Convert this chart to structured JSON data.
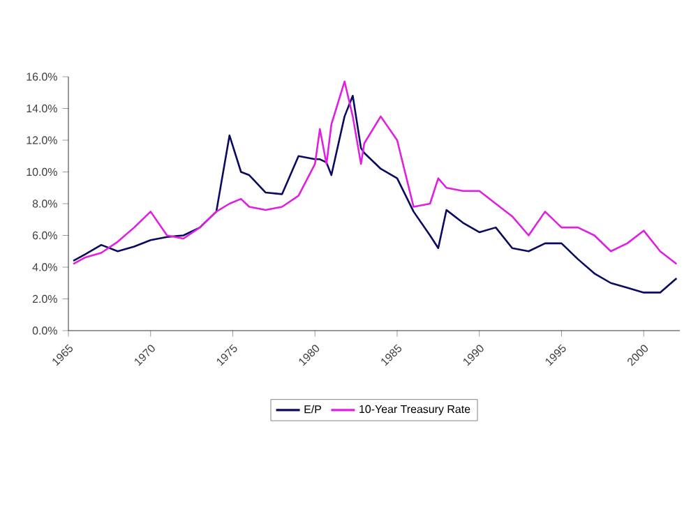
{
  "chart_data": {
    "type": "line",
    "x": [
      1965.3,
      1966,
      1967,
      1968,
      1969,
      1970,
      1971,
      1972,
      1973,
      1974,
      1974.8,
      1975.5,
      1976,
      1977,
      1978,
      1979,
      1980,
      1980.3,
      1980.7,
      1981,
      1981.8,
      1982.3,
      1982.8,
      1983,
      1984,
      1985,
      1986,
      1987,
      1987.5,
      1988,
      1989,
      1990,
      1991,
      1992,
      1993,
      1994,
      1995,
      1996,
      1997,
      1998,
      1999,
      2000,
      2001,
      2002
    ],
    "series": [
      {
        "name": "E/P",
        "color": "#0a0a60",
        "values": [
          4.4,
          4.8,
          5.4,
          5.0,
          5.3,
          5.7,
          5.9,
          6.0,
          6.5,
          7.5,
          12.3,
          10.0,
          9.8,
          8.7,
          8.6,
          11.0,
          10.8,
          10.8,
          10.6,
          9.8,
          13.5,
          14.8,
          11.5,
          11.2,
          10.2,
          9.6,
          7.5,
          6.0,
          5.2,
          7.6,
          6.8,
          6.2,
          6.5,
          5.2,
          5.0,
          5.5,
          5.5,
          4.5,
          3.6,
          3.0,
          2.7,
          2.4,
          2.4,
          3.3
        ]
      },
      {
        "name": "10-Year Treasury Rate",
        "color": "#e020e0",
        "values": [
          4.2,
          4.6,
          4.9,
          5.6,
          6.5,
          7.5,
          6.0,
          5.8,
          6.5,
          7.5,
          8.0,
          8.3,
          7.8,
          7.6,
          7.8,
          8.5,
          10.5,
          12.7,
          10.5,
          13.0,
          15.7,
          13.5,
          10.5,
          11.8,
          13.5,
          12.0,
          7.8,
          8.0,
          9.6,
          9.0,
          8.8,
          8.8,
          8.0,
          7.2,
          6.0,
          7.5,
          6.5,
          6.5,
          6.0,
          5.0,
          5.5,
          6.3,
          5.0,
          4.2
        ]
      }
    ],
    "xlim": [
      1965,
      2002.2
    ],
    "xticks": [
      1965,
      1970,
      1975,
      1980,
      1985,
      1990,
      1995,
      2000
    ],
    "ylim": [
      0,
      16
    ],
    "yticks": [
      {
        "value": 0,
        "label": "0.0%"
      },
      {
        "value": 2,
        "label": "2.0%"
      },
      {
        "value": 4,
        "label": "4.0%"
      },
      {
        "value": 6,
        "label": "6.0%"
      },
      {
        "value": 8,
        "label": "8.0%"
      },
      {
        "value": 10,
        "label": "10.0%"
      },
      {
        "value": 12,
        "label": "12.0%"
      },
      {
        "value": 14,
        "label": "14.0%"
      },
      {
        "value": 16,
        "label": "16.0%"
      }
    ],
    "grid": false,
    "legend": "bottom",
    "marker": "none",
    "line_style": "solid"
  }
}
